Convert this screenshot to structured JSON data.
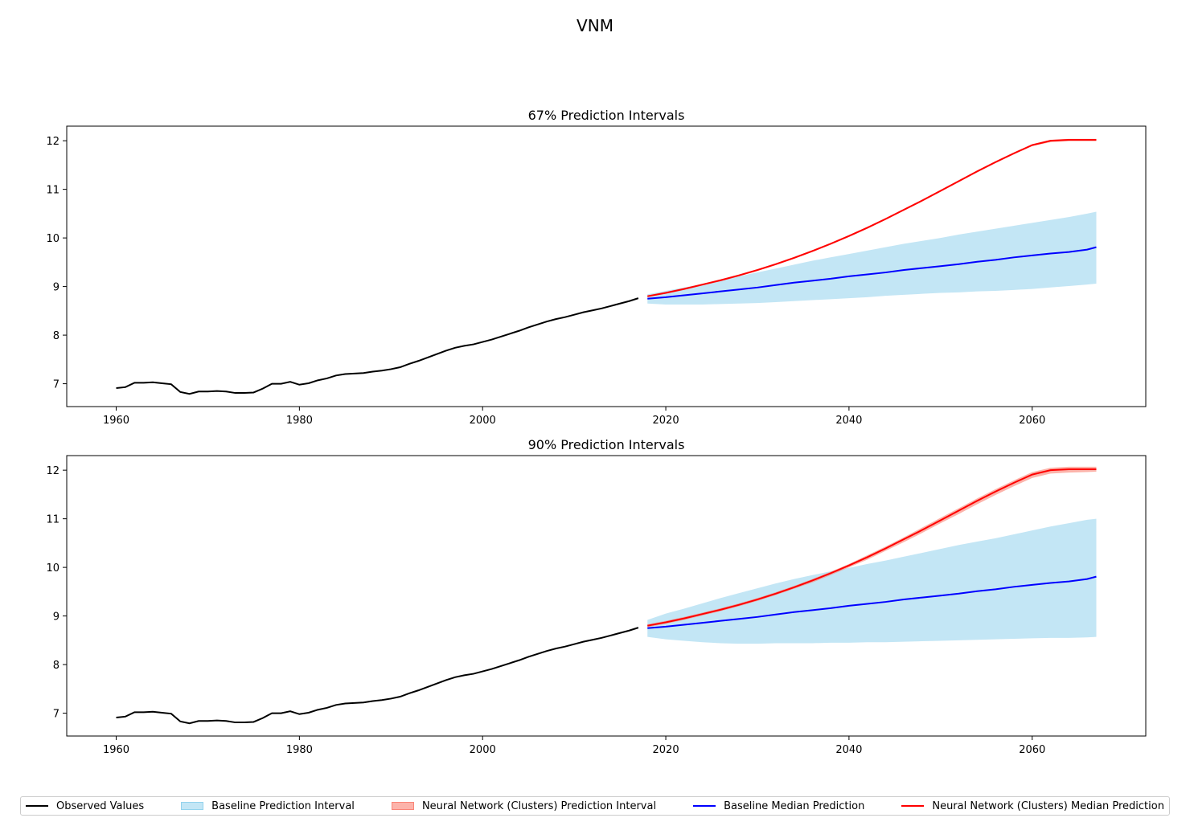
{
  "suptitle": "VNM",
  "colors": {
    "observed": "#000000",
    "baseline_median": "#0000ff",
    "nn_median": "#ff0000",
    "baseline_interval": "#87ceeb",
    "nn_interval": "#fa8072"
  },
  "legend": {
    "placement": "bottom-center",
    "entries": [
      {
        "label": "Observed Values",
        "kind": "line",
        "color": "#000000"
      },
      {
        "label": "Baseline Prediction Interval",
        "kind": "patch",
        "color": "#87ceeb"
      },
      {
        "label": "Neural Network (Clusters) Prediction Interval",
        "kind": "patch",
        "color": "#fa8072"
      },
      {
        "label": "Baseline Median Prediction",
        "kind": "line",
        "color": "#0000ff"
      },
      {
        "label": "Neural Network (Clusters) Median Prediction",
        "kind": "line",
        "color": "#ff0000"
      }
    ]
  },
  "chart_data": [
    {
      "type": "line",
      "title": "67% Prediction Intervals",
      "xlim": [
        1954.6,
        2072.4
      ],
      "ylim": [
        6.53,
        12.3
      ],
      "xticks": [
        1960,
        1980,
        2000,
        2020,
        2040,
        2060
      ],
      "yticks": [
        7,
        8,
        9,
        10,
        11,
        12
      ],
      "grid": false,
      "observed": {
        "x": [
          1960,
          1961,
          1962,
          1963,
          1964,
          1965,
          1966,
          1967,
          1968,
          1969,
          1970,
          1971,
          1972,
          1973,
          1974,
          1975,
          1976,
          1977,
          1978,
          1979,
          1980,
          1981,
          1982,
          1983,
          1984,
          1985,
          1986,
          1987,
          1988,
          1989,
          1990,
          1991,
          1992,
          1993,
          1994,
          1995,
          1996,
          1997,
          1998,
          1999,
          2000,
          2001,
          2002,
          2003,
          2004,
          2005,
          2006,
          2007,
          2008,
          2009,
          2010,
          2011,
          2012,
          2013,
          2014,
          2015,
          2016,
          2017
        ],
        "y": [
          6.91,
          6.93,
          7.02,
          7.02,
          7.03,
          7.01,
          6.99,
          6.83,
          6.79,
          6.84,
          6.84,
          6.85,
          6.84,
          6.81,
          6.81,
          6.82,
          6.9,
          7.0,
          7.0,
          7.04,
          6.98,
          7.01,
          7.07,
          7.11,
          7.17,
          7.2,
          7.21,
          7.22,
          7.25,
          7.27,
          7.3,
          7.34,
          7.41,
          7.47,
          7.54,
          7.61,
          7.68,
          7.74,
          7.78,
          7.81,
          7.86,
          7.91,
          7.97,
          8.03,
          8.09,
          8.16,
          8.22,
          8.28,
          8.33,
          8.37,
          8.42,
          8.47,
          8.51,
          8.55,
          8.6,
          8.65,
          8.7,
          8.76
        ]
      },
      "forecast_x": [
        2018,
        2020,
        2022,
        2024,
        2026,
        2028,
        2030,
        2032,
        2034,
        2036,
        2038,
        2040,
        2042,
        2044,
        2046,
        2048,
        2050,
        2052,
        2054,
        2056,
        2058,
        2060,
        2062,
        2064,
        2066,
        2067
      ],
      "baseline_median": [
        8.75,
        8.78,
        8.82,
        8.86,
        8.9,
        8.94,
        8.98,
        9.03,
        9.08,
        9.12,
        9.16,
        9.21,
        9.25,
        9.29,
        9.34,
        9.38,
        9.42,
        9.46,
        9.51,
        9.55,
        9.6,
        9.64,
        9.68,
        9.71,
        9.76,
        9.81
      ],
      "baseline_lower": [
        8.65,
        8.63,
        8.63,
        8.63,
        8.64,
        8.65,
        8.66,
        8.68,
        8.7,
        8.72,
        8.74,
        8.76,
        8.78,
        8.81,
        8.83,
        8.85,
        8.87,
        8.88,
        8.9,
        8.91,
        8.93,
        8.95,
        8.98,
        9.01,
        9.04,
        9.06
      ],
      "baseline_upper": [
        8.84,
        8.91,
        8.98,
        9.05,
        9.13,
        9.21,
        9.29,
        9.37,
        9.45,
        9.53,
        9.6,
        9.67,
        9.74,
        9.81,
        9.88,
        9.94,
        10.0,
        10.07,
        10.13,
        10.19,
        10.25,
        10.31,
        10.37,
        10.43,
        10.5,
        10.54
      ],
      "nn_median": [
        8.8,
        8.87,
        8.95,
        9.04,
        9.13,
        9.23,
        9.34,
        9.46,
        9.59,
        9.73,
        9.88,
        10.04,
        10.21,
        10.39,
        10.58,
        10.77,
        10.97,
        11.17,
        11.37,
        11.56,
        11.74,
        11.91,
        12.0,
        12.02,
        12.02,
        12.02
      ],
      "nn_lower": [
        8.78,
        8.85,
        8.93,
        9.02,
        9.11,
        9.21,
        9.32,
        9.44,
        9.57,
        9.71,
        9.86,
        10.02,
        10.19,
        10.37,
        10.56,
        10.75,
        10.95,
        11.15,
        11.35,
        11.54,
        11.72,
        11.89,
        11.97,
        11.99,
        11.99,
        11.99
      ],
      "nn_upper": [
        8.82,
        8.89,
        8.97,
        9.06,
        9.15,
        9.25,
        9.36,
        9.48,
        9.61,
        9.75,
        9.9,
        10.06,
        10.23,
        10.41,
        10.6,
        10.79,
        10.99,
        11.19,
        11.39,
        11.58,
        11.76,
        11.93,
        12.02,
        12.04,
        12.04,
        12.04
      ]
    },
    {
      "type": "line",
      "title": "90% Prediction Intervals",
      "xlim": [
        1954.6,
        2072.4
      ],
      "ylim": [
        6.53,
        12.3
      ],
      "xticks": [
        1960,
        1980,
        2000,
        2020,
        2040,
        2060
      ],
      "yticks": [
        7,
        8,
        9,
        10,
        11,
        12
      ],
      "grid": false,
      "observed": {
        "x": [
          1960,
          1961,
          1962,
          1963,
          1964,
          1965,
          1966,
          1967,
          1968,
          1969,
          1970,
          1971,
          1972,
          1973,
          1974,
          1975,
          1976,
          1977,
          1978,
          1979,
          1980,
          1981,
          1982,
          1983,
          1984,
          1985,
          1986,
          1987,
          1988,
          1989,
          1990,
          1991,
          1992,
          1993,
          1994,
          1995,
          1996,
          1997,
          1998,
          1999,
          2000,
          2001,
          2002,
          2003,
          2004,
          2005,
          2006,
          2007,
          2008,
          2009,
          2010,
          2011,
          2012,
          2013,
          2014,
          2015,
          2016,
          2017
        ],
        "y": [
          6.91,
          6.93,
          7.02,
          7.02,
          7.03,
          7.01,
          6.99,
          6.83,
          6.79,
          6.84,
          6.84,
          6.85,
          6.84,
          6.81,
          6.81,
          6.82,
          6.9,
          7.0,
          7.0,
          7.04,
          6.98,
          7.01,
          7.07,
          7.11,
          7.17,
          7.2,
          7.21,
          7.22,
          7.25,
          7.27,
          7.3,
          7.34,
          7.41,
          7.47,
          7.54,
          7.61,
          7.68,
          7.74,
          7.78,
          7.81,
          7.86,
          7.91,
          7.97,
          8.03,
          8.09,
          8.16,
          8.22,
          8.28,
          8.33,
          8.37,
          8.42,
          8.47,
          8.51,
          8.55,
          8.6,
          8.65,
          8.7,
          8.76
        ]
      },
      "forecast_x": [
        2018,
        2020,
        2022,
        2024,
        2026,
        2028,
        2030,
        2032,
        2034,
        2036,
        2038,
        2040,
        2042,
        2044,
        2046,
        2048,
        2050,
        2052,
        2054,
        2056,
        2058,
        2060,
        2062,
        2064,
        2066,
        2067
      ],
      "baseline_median": [
        8.75,
        8.78,
        8.82,
        8.86,
        8.9,
        8.94,
        8.98,
        9.03,
        9.08,
        9.12,
        9.16,
        9.21,
        9.25,
        9.29,
        9.34,
        9.38,
        9.42,
        9.46,
        9.51,
        9.55,
        9.6,
        9.64,
        9.68,
        9.71,
        9.76,
        9.81
      ],
      "baseline_lower": [
        8.57,
        8.52,
        8.49,
        8.46,
        8.44,
        8.43,
        8.43,
        8.44,
        8.44,
        8.44,
        8.45,
        8.45,
        8.46,
        8.46,
        8.47,
        8.48,
        8.49,
        8.5,
        8.51,
        8.52,
        8.53,
        8.54,
        8.55,
        8.55,
        8.56,
        8.57
      ],
      "baseline_upper": [
        8.92,
        9.05,
        9.15,
        9.26,
        9.37,
        9.47,
        9.57,
        9.67,
        9.76,
        9.84,
        9.92,
        9.99,
        10.07,
        10.14,
        10.22,
        10.3,
        10.38,
        10.46,
        10.53,
        10.6,
        10.68,
        10.76,
        10.84,
        10.91,
        10.98,
        11.0
      ],
      "nn_median": [
        8.8,
        8.87,
        8.95,
        9.04,
        9.13,
        9.23,
        9.34,
        9.46,
        9.59,
        9.73,
        9.88,
        10.04,
        10.21,
        10.39,
        10.58,
        10.77,
        10.97,
        11.17,
        11.37,
        11.56,
        11.74,
        11.91,
        12.0,
        12.02,
        12.02,
        12.02
      ],
      "nn_lower": [
        8.77,
        8.84,
        8.92,
        9.01,
        9.1,
        9.2,
        9.31,
        9.43,
        9.56,
        9.69,
        9.84,
        10.0,
        10.16,
        10.34,
        10.52,
        10.71,
        10.91,
        11.1,
        11.3,
        11.49,
        11.67,
        11.84,
        11.93,
        11.95,
        11.96,
        11.97
      ],
      "nn_upper": [
        8.83,
        8.9,
        8.98,
        9.07,
        9.16,
        9.26,
        9.37,
        9.49,
        9.62,
        9.76,
        9.91,
        10.07,
        10.25,
        10.43,
        10.62,
        10.82,
        11.02,
        11.22,
        11.42,
        11.61,
        11.79,
        11.96,
        12.05,
        12.07,
        12.07,
        12.07
      ]
    }
  ]
}
